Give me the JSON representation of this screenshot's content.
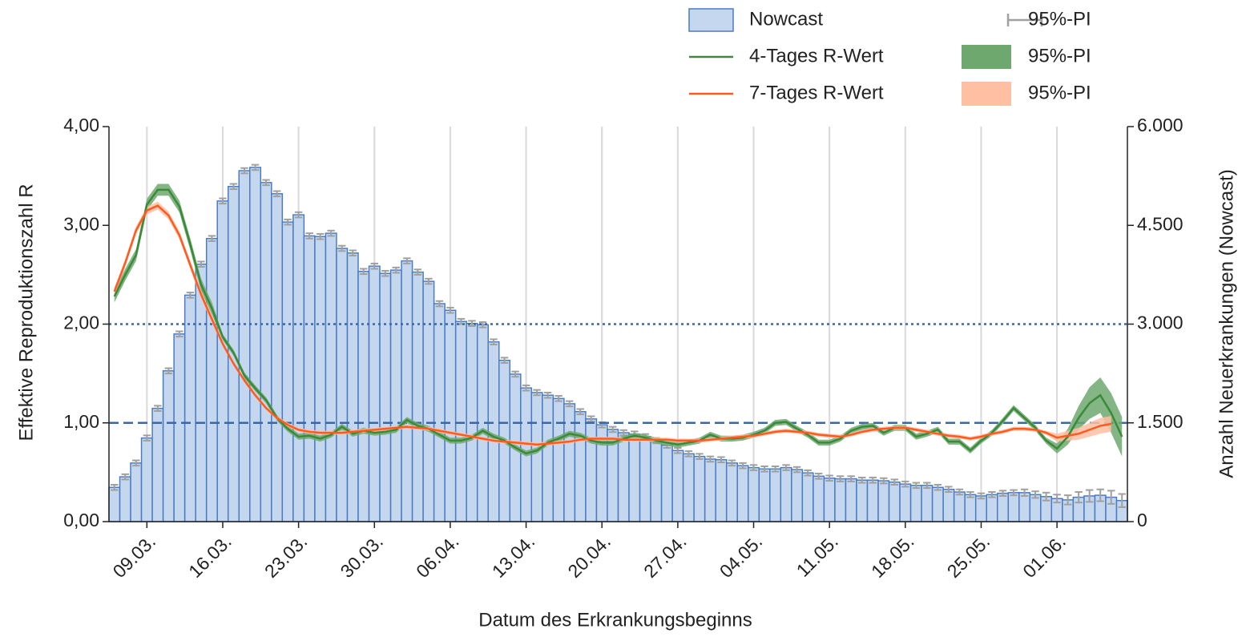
{
  "chart_data": {
    "type": "combo",
    "x_label": "Datum des Erkrankungsbeginns",
    "y_label": "Effektive Reproduktionszahl R",
    "y2_label": "Anzahl Neuerkrankungen (Nowcast)",
    "categories": [
      null,
      null,
      null,
      "09.03.",
      null,
      null,
      null,
      null,
      null,
      null,
      "16.03.",
      null,
      null,
      null,
      null,
      null,
      null,
      "23.03.",
      null,
      null,
      null,
      null,
      null,
      null,
      "30.03.",
      null,
      null,
      null,
      null,
      null,
      null,
      "06.04.",
      null,
      null,
      null,
      null,
      null,
      null,
      "13.04.",
      null,
      null,
      null,
      null,
      null,
      null,
      "20.04.",
      null,
      null,
      null,
      null,
      null,
      null,
      "27.04.",
      null,
      null,
      null,
      null,
      null,
      null,
      "04.05.",
      null,
      null,
      null,
      null,
      null,
      null,
      "11.05.",
      null,
      null,
      null,
      null,
      null,
      null,
      "18.05.",
      null,
      null,
      null,
      null,
      null,
      null,
      "25.05.",
      null,
      null,
      null,
      null,
      null,
      null,
      "01.06.",
      null,
      null,
      null,
      null,
      null,
      null
    ],
    "ylim": [
      0,
      4
    ],
    "yticks": [
      {
        "value": 0,
        "label": "0,00"
      },
      {
        "value": 1,
        "label": "1,00"
      },
      {
        "value": 2,
        "label": "2,00"
      },
      {
        "value": 3,
        "label": "3,00"
      },
      {
        "value": 4,
        "label": "4,00"
      }
    ],
    "y2lim": [
      0,
      6000
    ],
    "y2ticks": [
      0,
      {
        "value": 1500,
        "label": "1.500"
      },
      {
        "value": 3000,
        "label": "3.000"
      },
      {
        "value": 4500,
        "label": "4.500"
      },
      {
        "value": 6000,
        "label": "6.000"
      }
    ],
    "hlines": [
      {
        "value": 1,
        "style": "dashed",
        "color": "#3a67a8"
      },
      {
        "value": 2,
        "style": "dotted",
        "color": "#3a67a8"
      }
    ],
    "grid": true,
    "series": [
      {
        "name": "Nowcast",
        "type": "bar",
        "axis": "y2",
        "color": "#c5d7ee",
        "edge": "#4a7cc4",
        "error_color": "#a0a0a0",
        "pi_name": "95%-PI",
        "values": [
          520,
          680,
          890,
          1270,
          1720,
          2290,
          2850,
          3440,
          3910,
          4300,
          4870,
          5090,
          5330,
          5380,
          5150,
          4980,
          4550,
          4660,
          4340,
          4330,
          4380,
          4150,
          4080,
          3800,
          3880,
          3770,
          3820,
          3960,
          3790,
          3650,
          3310,
          3210,
          3040,
          3010,
          2990,
          2730,
          2450,
          2240,
          2030,
          1960,
          1920,
          1870,
          1790,
          1670,
          1560,
          1470,
          1400,
          1350,
          1330,
          1290,
          1230,
          1160,
          1080,
          1030,
          990,
          950,
          940,
          890,
          850,
          820,
          800,
          800,
          820,
          790,
          740,
          690,
          660,
          650,
          650,
          630,
          630,
          620,
          600,
          570,
          550,
          550,
          520,
          490,
          450,
          410,
          390,
          410,
          430,
          440,
          440,
          410,
          380,
          350,
          330,
          370,
          390,
          400,
          370,
          320
        ],
        "errors": [
          40,
          40,
          40,
          40,
          40,
          40,
          40,
          40,
          40,
          40,
          40,
          40,
          40,
          40,
          40,
          40,
          40,
          40,
          40,
          40,
          40,
          40,
          40,
          40,
          40,
          40,
          40,
          40,
          40,
          40,
          40,
          40,
          40,
          40,
          40,
          40,
          40,
          40,
          40,
          40,
          40,
          40,
          40,
          40,
          40,
          40,
          40,
          40,
          40,
          40,
          40,
          40,
          40,
          40,
          40,
          40,
          40,
          40,
          40,
          40,
          40,
          40,
          40,
          40,
          40,
          40,
          40,
          40,
          40,
          40,
          40,
          40,
          40,
          40,
          40,
          40,
          40,
          40,
          40,
          40,
          40,
          40,
          40,
          40,
          50,
          50,
          60,
          60,
          70,
          80,
          90,
          90,
          100,
          100
        ]
      },
      {
        "name": "4-Tages R-Wert",
        "type": "line",
        "axis": "y",
        "color": "#3a8a3a",
        "band_color": "#6fa86f",
        "pi_name": "95%-PI",
        "values": [
          2.28,
          2.5,
          2.7,
          3.21,
          3.36,
          3.36,
          3.19,
          2.81,
          2.4,
          2.16,
          1.87,
          1.71,
          1.48,
          1.35,
          1.23,
          1.05,
          0.94,
          0.86,
          0.87,
          0.84,
          0.88,
          0.96,
          0.89,
          0.92,
          0.9,
          0.91,
          0.93,
          1.03,
          0.97,
          0.94,
          0.88,
          0.82,
          0.82,
          0.85,
          0.92,
          0.86,
          0.82,
          0.75,
          0.69,
          0.72,
          0.8,
          0.84,
          0.89,
          0.87,
          0.82,
          0.8,
          0.8,
          0.84,
          0.87,
          0.85,
          0.82,
          0.8,
          0.78,
          0.8,
          0.82,
          0.88,
          0.84,
          0.84,
          0.85,
          0.88,
          0.92,
          1.0,
          1.01,
          0.94,
          0.88,
          0.8,
          0.8,
          0.84,
          0.92,
          0.96,
          0.97,
          0.9,
          0.95,
          0.95,
          0.86,
          0.89,
          0.93,
          0.81,
          0.81,
          0.72,
          0.82,
          0.9,
          1.02,
          1.15,
          1.05,
          0.95,
          0.82,
          0.74,
          0.86,
          1.05,
          1.2,
          1.28,
          1.1,
          0.86
        ],
        "errors": [
          0.06,
          0.06,
          0.06,
          0.06,
          0.06,
          0.06,
          0.06,
          0.06,
          0.06,
          0.06,
          0.03,
          0.03,
          0.03,
          0.03,
          0.03,
          0.03,
          0.03,
          0.03,
          0.03,
          0.03,
          0.03,
          0.03,
          0.03,
          0.03,
          0.03,
          0.03,
          0.03,
          0.03,
          0.03,
          0.03,
          0.03,
          0.03,
          0.03,
          0.03,
          0.03,
          0.03,
          0.03,
          0.03,
          0.03,
          0.03,
          0.03,
          0.03,
          0.03,
          0.03,
          0.03,
          0.03,
          0.03,
          0.03,
          0.03,
          0.03,
          0.03,
          0.03,
          0.03,
          0.03,
          0.03,
          0.03,
          0.03,
          0.03,
          0.03,
          0.03,
          0.03,
          0.03,
          0.03,
          0.03,
          0.03,
          0.03,
          0.03,
          0.03,
          0.03,
          0.03,
          0.03,
          0.03,
          0.03,
          0.03,
          0.03,
          0.03,
          0.03,
          0.03,
          0.03,
          0.03,
          0.03,
          0.03,
          0.03,
          0.03,
          0.03,
          0.03,
          0.03,
          0.05,
          0.08,
          0.12,
          0.16,
          0.18,
          0.2,
          0.2
        ]
      },
      {
        "name": "7-Tages R-Wert",
        "type": "line",
        "axis": "y",
        "color": "#ff5a1f",
        "band_color": "#ffbfa3",
        "pi_name": "95%-PI",
        "values": [
          2.33,
          2.62,
          2.95,
          3.15,
          3.2,
          3.1,
          2.9,
          2.6,
          2.3,
          2.05,
          1.8,
          1.6,
          1.43,
          1.28,
          1.15,
          1.05,
          0.98,
          0.93,
          0.91,
          0.9,
          0.9,
          0.9,
          0.91,
          0.92,
          0.93,
          0.94,
          0.95,
          0.96,
          0.95,
          0.94,
          0.92,
          0.9,
          0.88,
          0.86,
          0.84,
          0.82,
          0.81,
          0.8,
          0.79,
          0.78,
          0.79,
          0.8,
          0.81,
          0.83,
          0.84,
          0.84,
          0.84,
          0.83,
          0.83,
          0.83,
          0.83,
          0.83,
          0.82,
          0.82,
          0.82,
          0.83,
          0.84,
          0.85,
          0.86,
          0.87,
          0.89,
          0.91,
          0.92,
          0.91,
          0.9,
          0.88,
          0.87,
          0.86,
          0.88,
          0.91,
          0.93,
          0.94,
          0.95,
          0.95,
          0.93,
          0.91,
          0.89,
          0.87,
          0.86,
          0.84,
          0.86,
          0.89,
          0.91,
          0.94,
          0.94,
          0.93,
          0.9,
          0.85,
          0.87,
          0.89,
          0.93,
          0.97,
          0.99,
          null
        ],
        "errors": [
          0.04,
          0.04,
          0.04,
          0.04,
          0.04,
          0.04,
          0.04,
          0.04,
          0.04,
          0.04,
          0.02,
          0.02,
          0.02,
          0.02,
          0.02,
          0.02,
          0.02,
          0.02,
          0.02,
          0.02,
          0.02,
          0.02,
          0.02,
          0.02,
          0.02,
          0.02,
          0.02,
          0.02,
          0.02,
          0.02,
          0.02,
          0.02,
          0.02,
          0.02,
          0.02,
          0.02,
          0.02,
          0.02,
          0.02,
          0.02,
          0.02,
          0.02,
          0.02,
          0.02,
          0.02,
          0.02,
          0.02,
          0.02,
          0.02,
          0.02,
          0.02,
          0.02,
          0.02,
          0.02,
          0.02,
          0.02,
          0.02,
          0.02,
          0.02,
          0.02,
          0.02,
          0.02,
          0.02,
          0.02,
          0.02,
          0.02,
          0.02,
          0.02,
          0.02,
          0.02,
          0.02,
          0.02,
          0.02,
          0.02,
          0.02,
          0.02,
          0.02,
          0.02,
          0.02,
          0.02,
          0.02,
          0.02,
          0.02,
          0.02,
          0.02,
          0.02,
          0.02,
          0.04,
          0.05,
          0.06,
          0.07,
          0.08,
          0.08,
          null
        ]
      }
    ]
  }
}
